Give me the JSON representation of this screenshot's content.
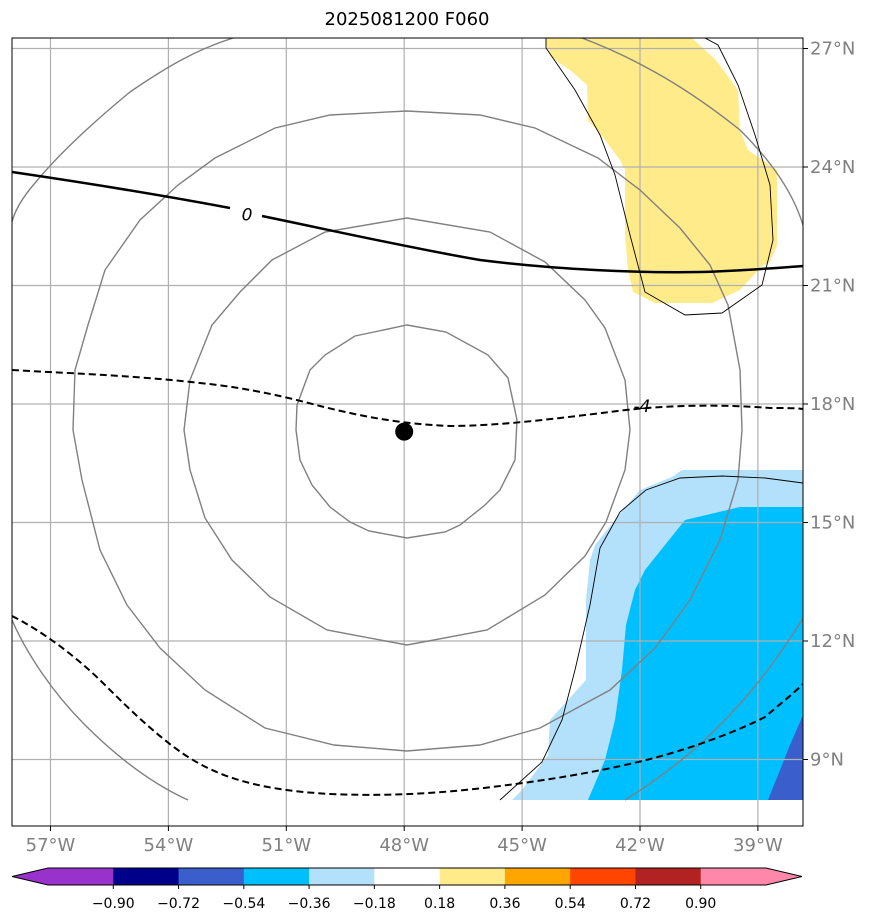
{
  "title": "2025081200 F060",
  "map": {
    "lon_range": [
      -58,
      -38
    ],
    "lat_range": [
      8,
      27.3
    ],
    "lon_ticks": [
      {
        "value": -57,
        "label": "57°W"
      },
      {
        "value": -54,
        "label": "54°W"
      },
      {
        "value": -51,
        "label": "51°W"
      },
      {
        "value": -48,
        "label": "48°W"
      },
      {
        "value": -45,
        "label": "45°W"
      },
      {
        "value": -42,
        "label": "42°W"
      },
      {
        "value": -39,
        "label": "39°W"
      }
    ],
    "lat_ticks": [
      {
        "value": 27,
        "label": "27°N"
      },
      {
        "value": 24,
        "label": "24°N"
      },
      {
        "value": 21,
        "label": "21°N"
      },
      {
        "value": 18,
        "label": "18°N"
      },
      {
        "value": 15,
        "label": "15°N"
      },
      {
        "value": 12,
        "label": "12°N"
      },
      {
        "value": 9,
        "label": "9°N"
      }
    ],
    "center": {
      "lon": -48.0,
      "lat": 17.3
    },
    "contour_labels": [
      {
        "text": "0",
        "lon": -52.0,
        "lat": 22.8
      },
      {
        "text": "-4",
        "lon": -41.95,
        "lat": 17.95
      }
    ],
    "colors": {
      "positive_fill": "#ffeb8a",
      "neg_light": "#b3e0fb",
      "neg_mid": "#00bfff",
      "neg_dark": "#3a5fcd",
      "grid": "#b0b0b0",
      "range_ring": "#808080",
      "contour": "#000000",
      "tick_label": "#808080"
    }
  },
  "colorbar": {
    "ticks": [
      "−0.90",
      "−0.72",
      "−0.54",
      "−0.36",
      "−0.18",
      "0.18",
      "0.36",
      "0.54",
      "0.72",
      "0.90"
    ],
    "colors": [
      "#9932cc",
      "#00008b",
      "#3a5fcd",
      "#00bfff",
      "#b3e0fb",
      "#ffffff",
      "#ffeb8a",
      "#ffa500",
      "#ff4500",
      "#b22222",
      "#ff88aa"
    ]
  }
}
